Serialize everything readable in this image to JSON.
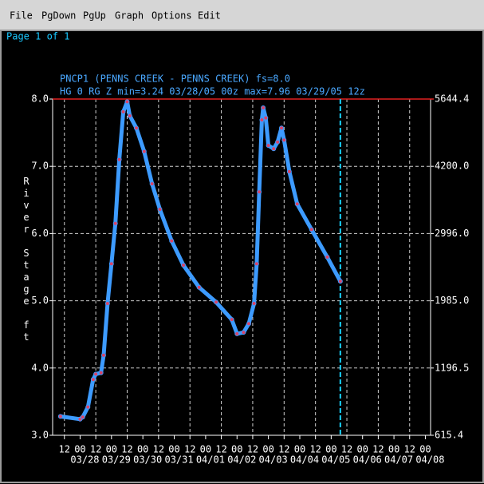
{
  "menu": [
    "File",
    "PgDown",
    "PgUp",
    "Graph",
    "Options",
    "Edit"
  ],
  "page_label": "Page 1 of 1",
  "chart_data": {
    "type": "line",
    "title": "PNCP1 (PENNS CREEK - PENNS CREEK) fs=8.0",
    "subtitle": "HG 0 RG Z min=3.24 03/28/05 00z max=7.96 03/29/05 12z",
    "y_label": "River Stage ft",
    "x": [
      "03/27/05 09z",
      "03/28/05 00z",
      "03/28/05 02z",
      "03/28/05 06z",
      "03/28/05 10z",
      "03/28/05 12z",
      "03/28/05 16z",
      "03/28/05 18z",
      "03/28/05 21z",
      "03/29/05 00z",
      "03/29/05 03z",
      "03/29/05 06z",
      "03/29/05 09z",
      "03/29/05 12z",
      "03/29/05 14z",
      "03/29/05 19z",
      "03/30/05 01z",
      "03/30/05 07z",
      "03/30/05 13z",
      "03/30/05 22z",
      "03/31/05 07z",
      "03/31/05 19z",
      "04/01/05 08z",
      "04/01/05 20z",
      "04/02/05 00z",
      "04/02/05 05z",
      "04/02/05 09z",
      "04/02/05 13z",
      "04/02/05 15z",
      "04/02/05 17z",
      "04/02/05 19z",
      "04/02/05 20z",
      "04/02/05 22z",
      "04/03/05 00z",
      "04/03/05 04z",
      "04/03/05 07z",
      "04/03/05 10z",
      "04/03/05 12z",
      "04/03/05 16z",
      "04/03/05 22z",
      "04/04/05 09z",
      "04/04/05 21z",
      "04/05/05 07z"
    ],
    "values": [
      3.28,
      3.24,
      3.27,
      3.42,
      3.83,
      3.91,
      3.93,
      4.19,
      4.96,
      5.55,
      6.15,
      7.1,
      7.81,
      7.96,
      7.75,
      7.57,
      7.22,
      6.74,
      6.36,
      5.89,
      5.53,
      5.2,
      4.98,
      4.72,
      4.51,
      4.53,
      4.66,
      4.96,
      5.55,
      6.62,
      7.69,
      7.87,
      7.72,
      7.31,
      7.26,
      7.36,
      7.57,
      7.39,
      6.92,
      6.44,
      6.06,
      5.65,
      5.29
    ],
    "line_color": "#3d9bff",
    "marker_color": "#d8456a",
    "flood_stage": 8.0,
    "flood_color": "#e02020",
    "current_time": "04/05/05 07z",
    "current_color": "#19d3ff",
    "xlim": [
      "03/27/05 03z",
      "04/08/05 04z"
    ],
    "ylim": [
      3,
      8
    ],
    "yticks": [
      {
        "value": 3,
        "label": "3.0"
      },
      {
        "value": 4,
        "label": "4.0"
      },
      {
        "value": 5,
        "label": "5.0"
      },
      {
        "value": 6,
        "label": "6.0"
      },
      {
        "value": 7,
        "label": "7.0"
      },
      {
        "value": 8,
        "label": "8.0"
      }
    ],
    "y2ticks": [
      615.4,
      1196.5,
      {
        "value": 1985,
        "label": "1985.0"
      },
      {
        "value": 2996,
        "label": "2996.0"
      },
      {
        "value": 4200,
        "label": "4200.0"
      },
      5644.4
    ],
    "xticks": [
      {
        "value": "03/27/05 12z",
        "label": "12"
      },
      {
        "value": "03/28/05 00z",
        "label": "00"
      },
      {
        "value": "03/28/05 12z",
        "label": "12"
      },
      {
        "value": "03/29/05 00z",
        "label": "00"
      },
      {
        "value": "03/29/05 12z",
        "label": "12"
      },
      {
        "value": "03/30/05 00z",
        "label": "00"
      },
      {
        "value": "03/30/05 12z",
        "label": "12"
      },
      {
        "value": "03/31/05 00z",
        "label": "00"
      },
      {
        "value": "03/31/05 12z",
        "label": "12"
      },
      {
        "value": "04/01/05 00z",
        "label": "00"
      },
      {
        "value": "04/01/05 12z",
        "label": "12"
      },
      {
        "value": "04/02/05 00z",
        "label": "00"
      },
      {
        "value": "04/02/05 12z",
        "label": "12"
      },
      {
        "value": "04/03/05 00z",
        "label": "00"
      },
      {
        "value": "04/03/05 12z",
        "label": "12"
      },
      {
        "value": "04/04/05 00z",
        "label": "00"
      },
      {
        "value": "04/04/05 12z",
        "label": "12"
      },
      {
        "value": "04/05/05 00z",
        "label": "00"
      },
      {
        "value": "04/05/05 12z",
        "label": "12"
      },
      {
        "value": "04/06/05 00z",
        "label": "00"
      },
      {
        "value": "04/06/05 12z",
        "label": "12"
      },
      {
        "value": "04/07/05 00z",
        "label": "00"
      },
      {
        "value": "04/07/05 12z",
        "label": "12"
      },
      {
        "value": "04/08/05 00z",
        "label": "00"
      }
    ],
    "xdates": [
      {
        "value": "03/28/05 00z",
        "label": "03/28"
      },
      {
        "value": "03/29/05 00z",
        "label": "03/29"
      },
      {
        "value": "03/30/05 00z",
        "label": "03/30"
      },
      {
        "value": "03/31/05 00z",
        "label": "03/31"
      },
      {
        "value": "04/01/05 00z",
        "label": "04/01"
      },
      {
        "value": "04/02/05 00z",
        "label": "04/02"
      },
      {
        "value": "04/03/05 00z",
        "label": "04/03"
      },
      {
        "value": "04/04/05 00z",
        "label": "04/04"
      },
      {
        "value": "04/05/05 00z",
        "label": "04/05"
      },
      {
        "value": "04/06/05 00z",
        "label": "04/06"
      },
      {
        "value": "04/07/05 00z",
        "label": "04/07"
      },
      {
        "value": "04/08/05 00z",
        "label": "04/08"
      }
    ],
    "grid": true
  }
}
